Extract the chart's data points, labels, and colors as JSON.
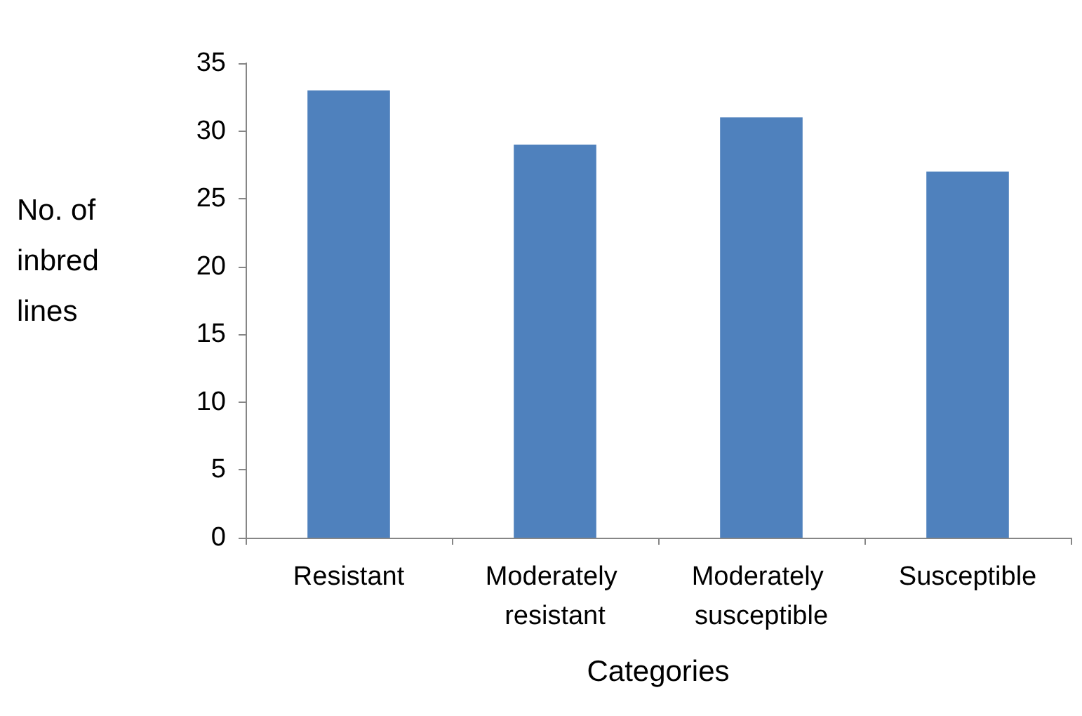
{
  "chart_data": {
    "type": "bar",
    "xlabel": "Categories",
    "ylabel": "No. of inbred lines",
    "categories": [
      "Resistant",
      "Moderately resistant",
      "Moderately susceptible",
      "Susceptible"
    ],
    "values": [
      33,
      29,
      31,
      27
    ],
    "color": "#4f81bd",
    "ylim": [
      0,
      35
    ],
    "yticks": [
      0,
      5,
      10,
      15,
      20,
      25,
      30,
      35
    ],
    "grid": false
  }
}
